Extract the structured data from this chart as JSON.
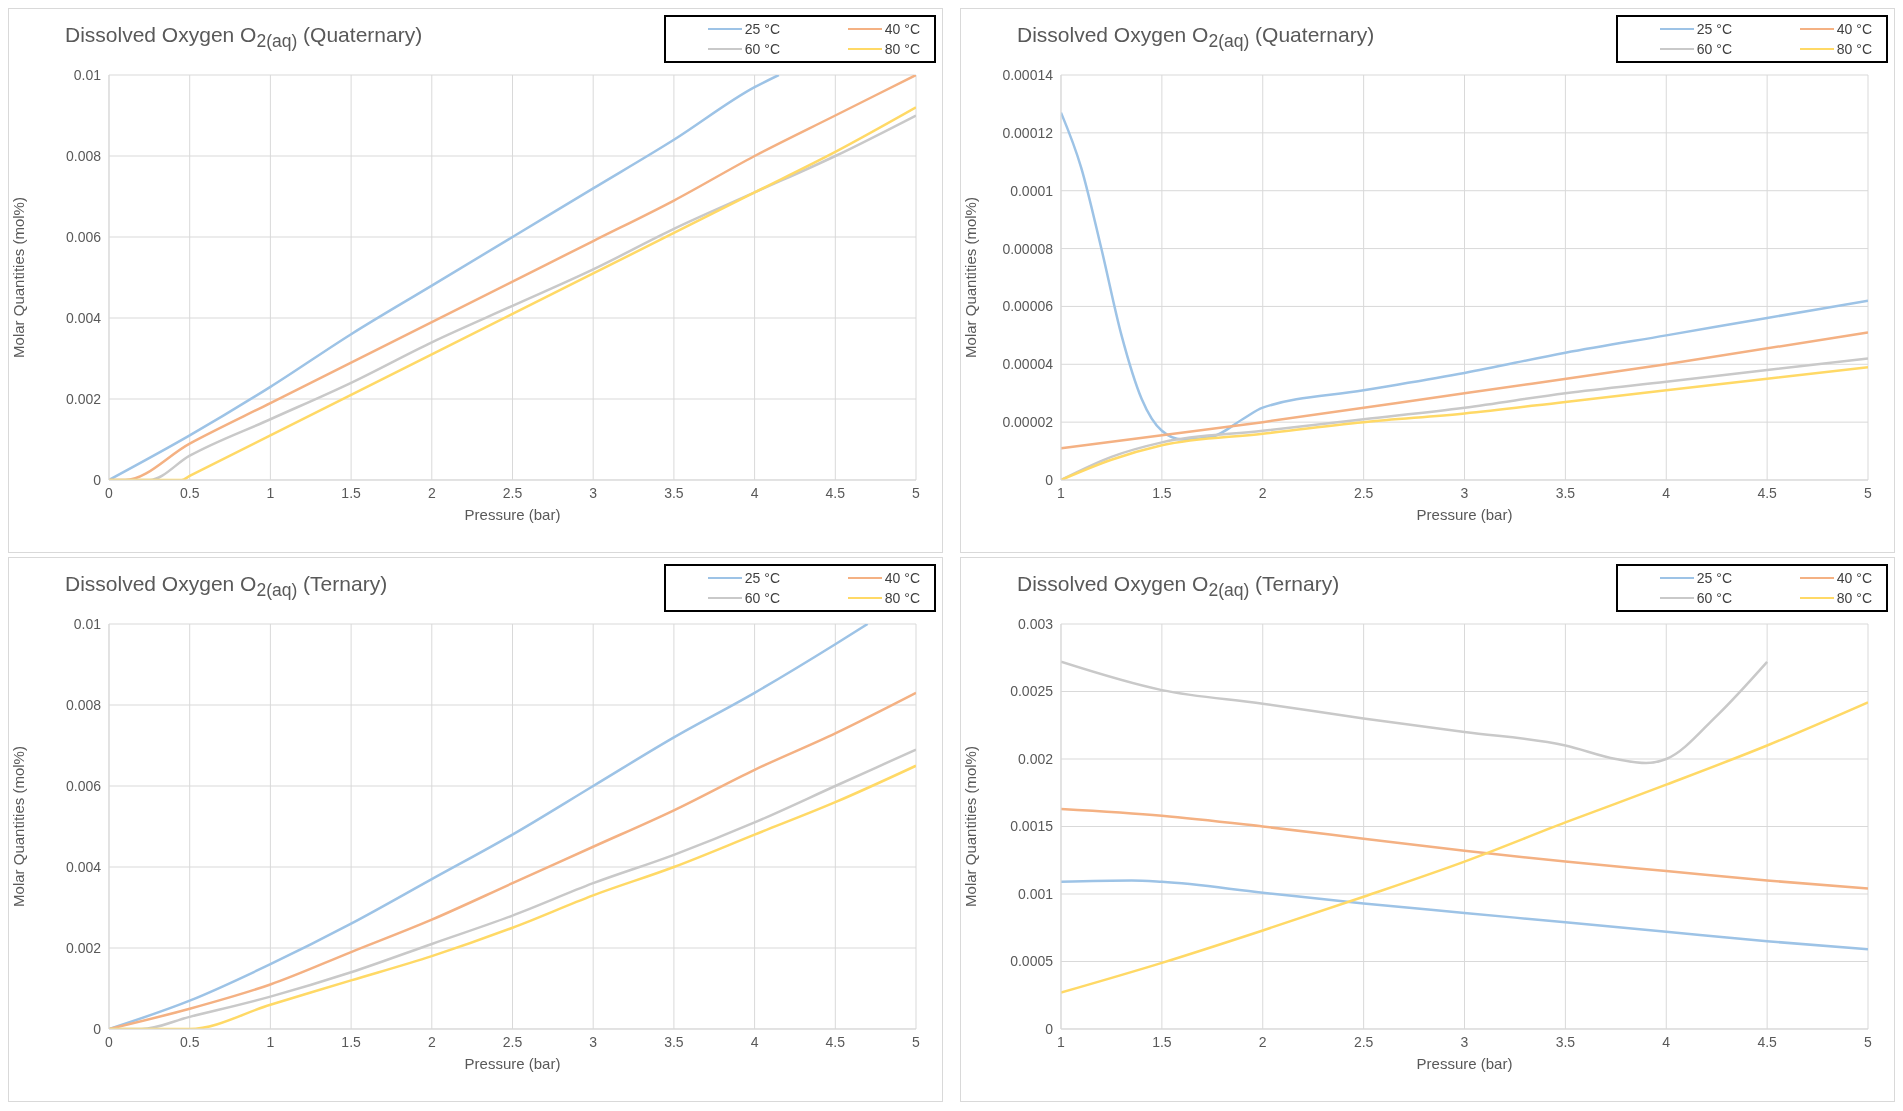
{
  "chart_data": [
    {
      "type": "line",
      "title": "Dissolved Oxygen O$_{2(aq)}$ (Quaternary)",
      "xlabel": "Pressure (bar)",
      "ylabel": "Molar Quantities (mol%)",
      "xlim": [
        0,
        5
      ],
      "xticks": [
        0,
        0.5,
        1,
        1.5,
        2,
        2.5,
        3,
        3.5,
        4,
        4.5,
        5
      ],
      "ylim": [
        0,
        0.01
      ],
      "yticks": [
        0,
        0.002,
        0.004,
        0.006,
        0.008,
        0.01
      ],
      "grid": true,
      "legend": "top right",
      "series": [
        {
          "name": "25 °C",
          "color": "#9dc3e6",
          "x": [
            0,
            0.5,
            1,
            1.5,
            2,
            2.5,
            3,
            3.5,
            4,
            4.15
          ],
          "values": [
            0,
            0.0011,
            0.0023,
            0.0036,
            0.0048,
            0.006,
            0.0072,
            0.0084,
            0.0097,
            0.01
          ]
        },
        {
          "name": "40 °C",
          "color": "#f4b183",
          "x": [
            0,
            0.1,
            0.5,
            1,
            1.5,
            2,
            2.5,
            3,
            3.5,
            4,
            4.5,
            5
          ],
          "values": [
            0,
            0,
            0.0009,
            0.0019,
            0.0029,
            0.0039,
            0.0049,
            0.0059,
            0.0069,
            0.008,
            0.009,
            0.01
          ]
        },
        {
          "name": "60 °C",
          "color": "#c9c9c9",
          "x": [
            0,
            0.25,
            0.5,
            1,
            1.5,
            2,
            2.5,
            3,
            3.5,
            4,
            4.5,
            5
          ],
          "values": [
            0,
            0,
            0.0006,
            0.0015,
            0.0024,
            0.0034,
            0.0043,
            0.0052,
            0.0062,
            0.0071,
            0.008,
            0.009
          ]
        },
        {
          "name": "80 °C",
          "color": "#ffd966",
          "x": [
            0,
            0.45,
            0.5,
            1,
            1.5,
            2,
            2.5,
            3,
            3.5,
            4,
            4.5,
            5
          ],
          "values": [
            0,
            0,
            0.0001,
            0.0011,
            0.0021,
            0.0031,
            0.0041,
            0.0051,
            0.0061,
            0.0071,
            0.0081,
            0.0092
          ]
        }
      ]
    },
    {
      "type": "line",
      "title": "Dissolved Oxygen O$_{2(aq)}$ (Quaternary)",
      "xlabel": "Pressure (bar)",
      "ylabel": "Molar Quantities (mol%)",
      "xlim": [
        1,
        5
      ],
      "xticks": [
        1,
        1.5,
        2,
        2.5,
        3,
        3.5,
        4,
        4.5,
        5
      ],
      "ylim": [
        0,
        0.00014
      ],
      "yticks": [
        0,
        {
          "value": 2e-05,
          "label": "0.00002"
        },
        {
          "value": 4e-05,
          "label": "0.00004"
        },
        {
          "value": 6e-05,
          "label": "0.00006"
        },
        {
          "value": 8e-05,
          "label": "0.00008"
        },
        0.0001,
        0.00012,
        0.00014
      ],
      "grid": true,
      "legend": "top right",
      "series": [
        {
          "name": "25 °C",
          "color": "#9dc3e6",
          "x": [
            1,
            1.1,
            1.2,
            1.3,
            1.4,
            1.5,
            1.6,
            1.75,
            1.9,
            2,
            2.5,
            3,
            3.5,
            4,
            4.5,
            5
          ],
          "values": [
            0.000127,
            0.000108,
            8e-05,
            5e-05,
            2.8e-05,
            1.7e-05,
            1.4e-05,
            1.5e-05,
            2.1e-05,
            2.5e-05,
            3.1e-05,
            3.7e-05,
            4.4e-05,
            5e-05,
            5.6e-05,
            6.2e-05
          ]
        },
        {
          "name": "40 °C",
          "color": "#f4b183",
          "x": [
            1,
            2,
            3,
            4,
            5
          ],
          "values": [
            1.1e-05,
            2e-05,
            3e-05,
            4e-05,
            5.1e-05
          ]
        },
        {
          "name": "60 °C",
          "color": "#c9c9c9",
          "x": [
            1,
            1.25,
            1.5,
            2,
            2.5,
            3,
            3.5,
            4,
            4.5,
            5
          ],
          "values": [
            0,
            8e-06,
            1.3e-05,
            1.7e-05,
            2.1e-05,
            2.5e-05,
            3e-05,
            3.4e-05,
            3.8e-05,
            4.2e-05
          ]
        },
        {
          "name": "80 °C",
          "color": "#ffd966",
          "x": [
            1,
            1.25,
            1.5,
            2,
            2.5,
            3,
            3.5,
            4,
            4.5,
            5
          ],
          "values": [
            0,
            7e-06,
            1.2e-05,
            1.6e-05,
            2e-05,
            2.3e-05,
            2.7e-05,
            3.1e-05,
            3.5e-05,
            3.9e-05
          ]
        }
      ]
    },
    {
      "type": "line",
      "title": "Dissolved Oxygen O$_{2(aq)}$ (Ternary)",
      "xlabel": "Pressure (bar)",
      "ylabel": "Molar Quantities (mol%)",
      "xlim": [
        0,
        5
      ],
      "xticks": [
        0,
        0.5,
        1,
        1.5,
        2,
        2.5,
        3,
        3.5,
        4,
        4.5,
        5
      ],
      "ylim": [
        0,
        0.01
      ],
      "yticks": [
        0,
        0.002,
        0.004,
        0.006,
        0.008,
        0.01
      ],
      "grid": true,
      "legend": "top right",
      "series": [
        {
          "name": "25 °C",
          "color": "#9dc3e6",
          "x": [
            0,
            0.5,
            1,
            1.5,
            2,
            2.5,
            3,
            3.5,
            4,
            4.5,
            4.7
          ],
          "values": [
            0,
            0.0007,
            0.0016,
            0.0026,
            0.0037,
            0.0048,
            0.006,
            0.0072,
            0.0083,
            0.0095,
            0.01
          ]
        },
        {
          "name": "40 °C",
          "color": "#f4b183",
          "x": [
            0,
            0.5,
            1,
            1.5,
            2,
            2.5,
            3,
            3.5,
            4,
            4.5,
            5
          ],
          "values": [
            0,
            0.0005,
            0.0011,
            0.0019,
            0.0027,
            0.0036,
            0.0045,
            0.0054,
            0.0064,
            0.0073,
            0.0083
          ]
        },
        {
          "name": "60 °C",
          "color": "#c9c9c9",
          "x": [
            0,
            0.2,
            0.5,
            1,
            1.5,
            2,
            2.5,
            3,
            3.5,
            4,
            4.5,
            5
          ],
          "values": [
            0,
            0,
            0.0003,
            0.0008,
            0.0014,
            0.0021,
            0.0028,
            0.0036,
            0.0043,
            0.0051,
            0.006,
            0.0069
          ]
        },
        {
          "name": "80 °C",
          "color": "#ffd966",
          "x": [
            0,
            0.5,
            1,
            1.5,
            2,
            2.5,
            3,
            3.5,
            4,
            4.5,
            5
          ],
          "values": [
            0,
            0,
            0.0006,
            0.0012,
            0.0018,
            0.0025,
            0.0033,
            0.004,
            0.0048,
            0.0056,
            0.0065
          ]
        }
      ]
    },
    {
      "type": "line",
      "title": "Dissolved Oxygen O$_{2(aq)}$ (Ternary)",
      "xlabel": "Pressure (bar)",
      "ylabel": "Molar Quantities (mol%)",
      "xlim": [
        1,
        5
      ],
      "xticks": [
        1,
        1.5,
        2,
        2.5,
        3,
        3.5,
        4,
        4.5,
        5
      ],
      "ylim": [
        0,
        0.003
      ],
      "yticks": [
        0,
        0.0005,
        0.001,
        0.0015,
        0.002,
        0.0025,
        0.003
      ],
      "grid": true,
      "legend": "top right",
      "series": [
        {
          "name": "25 °C",
          "color": "#9dc3e6",
          "x": [
            1,
            1.35,
            1.5,
            2,
            2.5,
            3,
            3.5,
            4,
            4.5,
            5
          ],
          "values": [
            0.00109,
            0.0011,
            0.00109,
            0.00101,
            0.00093,
            0.00086,
            0.00079,
            0.00072,
            0.00065,
            0.00059
          ]
        },
        {
          "name": "40 °C",
          "color": "#f4b183",
          "x": [
            1,
            1.5,
            2,
            2.5,
            3,
            3.5,
            4,
            4.5,
            5
          ],
          "values": [
            0.00163,
            0.00158,
            0.0015,
            0.00141,
            0.00132,
            0.00124,
            0.00117,
            0.0011,
            0.00104
          ]
        },
        {
          "name": "60 °C",
          "color": "#c9c9c9",
          "x": [
            1,
            1.5,
            2,
            2.5,
            3,
            3.5,
            3.75,
            3.9,
            4,
            4.25,
            4.5
          ],
          "values": [
            0.00272,
            0.00251,
            0.00241,
            0.0023,
            0.0022,
            0.0021,
            0.002,
            0.00197,
            0.002,
            0.00232,
            0.00272
          ]
        },
        {
          "name": "80 °C",
          "color": "#ffd966",
          "x": [
            1,
            1.5,
            2,
            2.5,
            3,
            3.5,
            4,
            4.5,
            5
          ],
          "values": [
            0.00027,
            0.00049,
            0.00073,
            0.00098,
            0.00124,
            0.00153,
            0.00181,
            0.0021,
            0.00242
          ]
        }
      ]
    }
  ]
}
